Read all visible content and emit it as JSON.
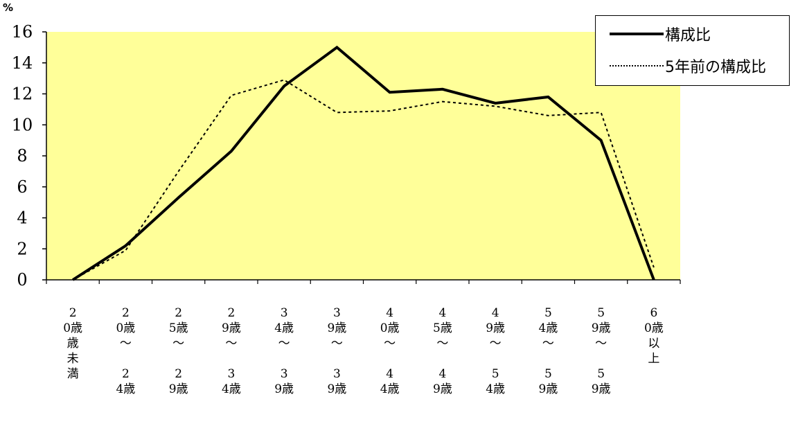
{
  "chart_data": {
    "type": "line",
    "unit": "%",
    "ylim": [
      0,
      16
    ],
    "yticks": [
      "0",
      "2",
      "4",
      "6",
      "8",
      "10",
      "12",
      "14",
      "16"
    ],
    "categories": [
      {
        "top": "2",
        "glyph": "0歳",
        "mid": "歳未満",
        "low": "",
        "bottom": ""
      },
      {
        "top": "2",
        "glyph": "0歳",
        "mid": "〜",
        "low": "2",
        "bottom": "4歳"
      },
      {
        "top": "2",
        "glyph": "5歳",
        "mid": "〜",
        "low": "2",
        "bottom": "9歳"
      },
      {
        "top": "2",
        "glyph": "9歳",
        "mid": "〜",
        "low": "3",
        "bottom": "4歳"
      },
      {
        "top": "3",
        "glyph": "4歳",
        "mid": "〜",
        "low": "3",
        "bottom": "9歳"
      },
      {
        "top": "3",
        "glyph": "9歳",
        "mid": "〜",
        "low": "3",
        "bottom": "9歳"
      },
      {
        "top": "4",
        "glyph": "0歳",
        "mid": "〜",
        "low": "4",
        "bottom": "4歳"
      },
      {
        "top": "4",
        "glyph": "5歳",
        "mid": "〜",
        "low": "4",
        "bottom": "9歳"
      },
      {
        "top": "4",
        "glyph": "9歳",
        "mid": "〜",
        "low": "5",
        "bottom": "4歳"
      },
      {
        "top": "5",
        "glyph": "4歳",
        "mid": "〜",
        "low": "5",
        "bottom": "9歳"
      },
      {
        "top": "5",
        "glyph": "9歳",
        "mid": "〜",
        "low": "5",
        "bottom": "9歳"
      },
      {
        "top": "6",
        "glyph": "0歳",
        "mid": "以上",
        "low": "",
        "bottom": ""
      }
    ],
    "series": [
      {
        "name": "構成比",
        "style": "solid",
        "color": "#000000",
        "values": [
          0,
          2.2,
          5.3,
          8.3,
          12.5,
          15.0,
          12.1,
          12.3,
          11.4,
          11.8,
          9.0,
          0
        ]
      },
      {
        "name": "5年前の構成比",
        "style": "dotted",
        "color": "#000000",
        "values": [
          0,
          1.9,
          7.0,
          11.9,
          12.9,
          10.8,
          10.9,
          11.5,
          11.2,
          10.6,
          10.8,
          0.8
        ]
      }
    ],
    "plot_background": "#ffff99",
    "grid": false,
    "legend_position": "top-right"
  }
}
